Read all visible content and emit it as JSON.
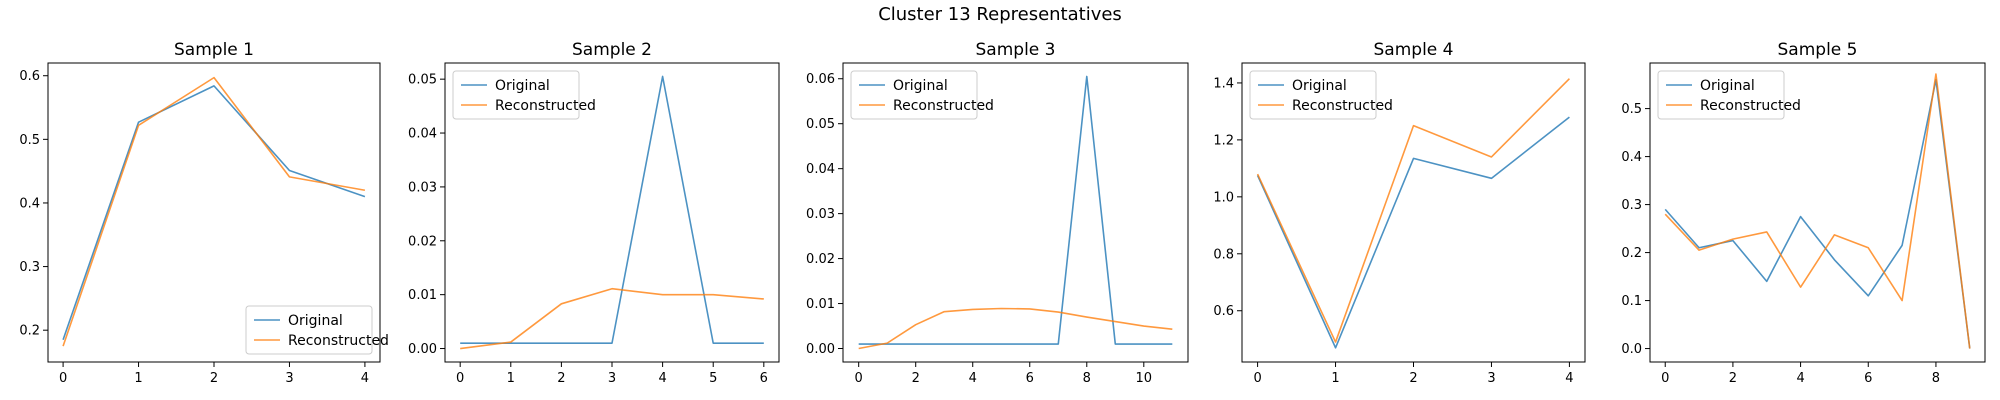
{
  "figure": {
    "suptitle": "Cluster 13 Representatives"
  },
  "colors": {
    "original": "#1f77b4",
    "reconstructed": "#ff7f0e"
  },
  "chart_data": [
    {
      "type": "line",
      "title": "Sample 1",
      "x": [
        0,
        1,
        2,
        3,
        4
      ],
      "xticks": [
        0,
        1,
        2,
        3,
        4
      ],
      "xlim": [
        -0.2,
        4.2
      ],
      "ylim": [
        0.15,
        0.62
      ],
      "yticks": [
        0.2,
        0.3,
        0.4,
        0.5,
        0.6
      ],
      "ytick_labels": [
        "0.2",
        "0.3",
        "0.4",
        "0.5",
        "0.6"
      ],
      "legend": "lower-right",
      "series": [
        {
          "name": "Original",
          "values": [
            0.185,
            0.527,
            0.584,
            0.451,
            0.41
          ]
        },
        {
          "name": "Reconstructed",
          "values": [
            0.175,
            0.522,
            0.597,
            0.441,
            0.42
          ]
        }
      ]
    },
    {
      "type": "line",
      "title": "Sample 2",
      "x": [
        0,
        1,
        2,
        3,
        4,
        5,
        6
      ],
      "xticks": [
        0,
        1,
        2,
        3,
        4,
        5,
        6
      ],
      "xlim": [
        -0.3,
        6.3
      ],
      "ylim": [
        -0.0025,
        0.053
      ],
      "yticks": [
        0,
        0.01,
        0.02,
        0.03,
        0.04,
        0.05
      ],
      "ytick_labels": [
        "0.00",
        "0.01",
        "0.02",
        "0.03",
        "0.04",
        "0.05"
      ],
      "legend": "upper-left",
      "series": [
        {
          "name": "Original",
          "values": [
            0.001,
            0.001,
            0.001,
            0.001,
            0.0505,
            0.001,
            0.001
          ]
        },
        {
          "name": "Reconstructed",
          "values": [
            0.0,
            0.0012,
            0.0083,
            0.0111,
            0.01,
            0.01,
            0.0092
          ]
        }
      ]
    },
    {
      "type": "line",
      "title": "Sample 3",
      "x": [
        0,
        1,
        2,
        3,
        4,
        5,
        6,
        7,
        8,
        9,
        10,
        11
      ],
      "xticks": [
        0,
        2,
        4,
        6,
        8,
        10
      ],
      "xlim": [
        -0.55,
        11.55
      ],
      "ylim": [
        -0.003,
        0.0635
      ],
      "yticks": [
        0,
        0.01,
        0.02,
        0.03,
        0.04,
        0.05,
        0.06
      ],
      "ytick_labels": [
        "0.00",
        "0.01",
        "0.02",
        "0.03",
        "0.04",
        "0.05",
        "0.06"
      ],
      "legend": "upper-left",
      "series": [
        {
          "name": "Original",
          "values": [
            0.001,
            0.001,
            0.001,
            0.001,
            0.001,
            0.001,
            0.001,
            0.001,
            0.0605,
            0.001,
            0.001,
            0.001
          ]
        },
        {
          "name": "Reconstructed",
          "values": [
            0.0,
            0.0012,
            0.0053,
            0.0082,
            0.0087,
            0.0089,
            0.0088,
            0.0081,
            0.007,
            0.006,
            0.005,
            0.0043
          ]
        }
      ]
    },
    {
      "type": "line",
      "title": "Sample 4",
      "x": [
        0,
        1,
        2,
        3,
        4
      ],
      "xticks": [
        0,
        1,
        2,
        3,
        4
      ],
      "xlim": [
        -0.2,
        4.2
      ],
      "ylim": [
        0.42,
        1.47
      ],
      "yticks": [
        0.6,
        0.8,
        1.0,
        1.2,
        1.4
      ],
      "ytick_labels": [
        "0.6",
        "0.8",
        "1.0",
        "1.2",
        "1.4"
      ],
      "legend": "upper-left",
      "series": [
        {
          "name": "Original",
          "values": [
            1.075,
            0.47,
            1.135,
            1.065,
            1.28
          ]
        },
        {
          "name": "Reconstructed",
          "values": [
            1.08,
            0.49,
            1.25,
            1.14,
            1.415
          ]
        }
      ]
    },
    {
      "type": "line",
      "title": "Sample 5",
      "x": [
        0,
        1,
        2,
        3,
        4,
        5,
        6,
        7,
        8,
        9
      ],
      "xticks": [
        0,
        2,
        4,
        6,
        8
      ],
      "xlim": [
        -0.45,
        9.45
      ],
      "ylim": [
        -0.028,
        0.595
      ],
      "yticks": [
        0,
        0.1,
        0.2,
        0.3,
        0.4,
        0.5
      ],
      "ytick_labels": [
        "0.0",
        "0.1",
        "0.2",
        "0.3",
        "0.4",
        "0.5"
      ],
      "legend": "upper-left",
      "series": [
        {
          "name": "Original",
          "values": [
            0.29,
            0.21,
            0.225,
            0.14,
            0.275,
            0.185,
            0.11,
            0.215,
            0.56,
            0.0
          ]
        },
        {
          "name": "Reconstructed",
          "values": [
            0.28,
            0.205,
            0.228,
            0.243,
            0.128,
            0.237,
            0.21,
            0.1,
            0.572,
            0.0
          ]
        }
      ]
    }
  ]
}
